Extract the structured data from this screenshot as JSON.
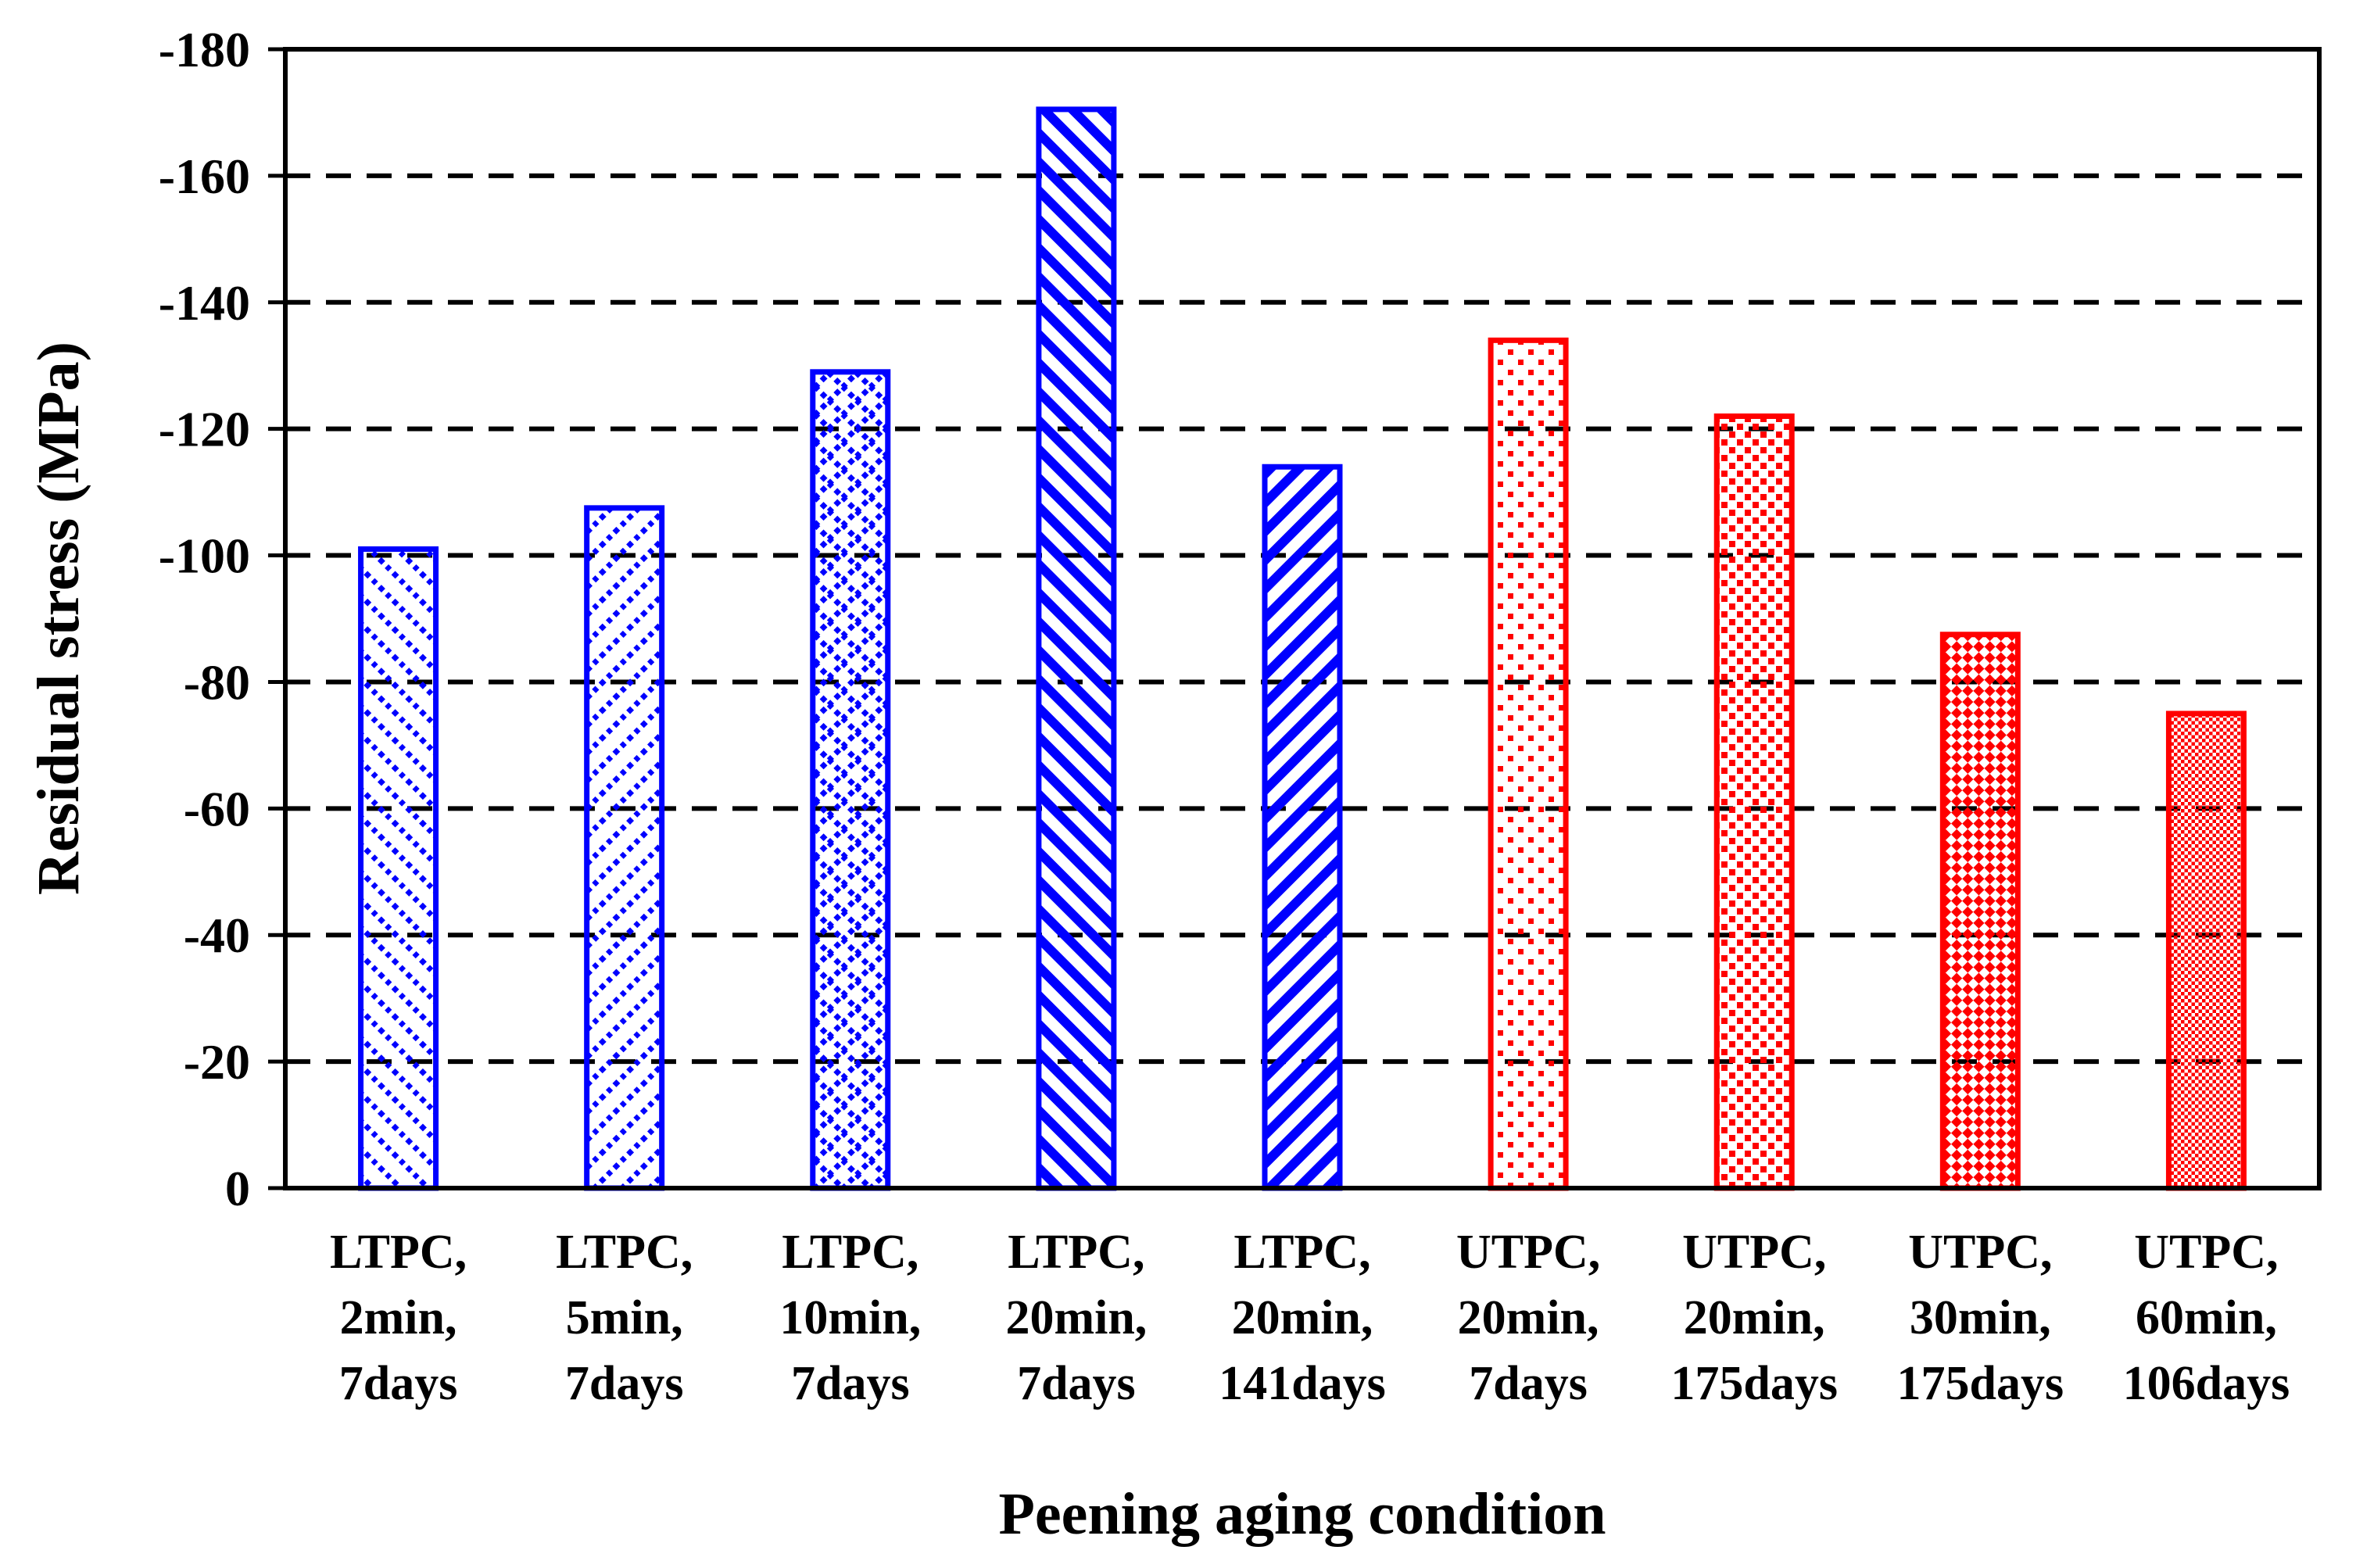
{
  "chart_data": {
    "type": "bar",
    "title": "",
    "xlabel": "Peening aging condition",
    "ylabel": "Residual stress (MPa)",
    "ylim": [
      0,
      -180
    ],
    "ytick_interval": 20,
    "yticks": [
      {
        "value": 0,
        "label": "0"
      },
      {
        "value": -20,
        "label": "-20"
      },
      {
        "value": -40,
        "label": "-40"
      },
      {
        "value": -60,
        "label": "-60"
      },
      {
        "value": -80,
        "label": "-80"
      },
      {
        "value": -100,
        "label": "-100"
      },
      {
        "value": -120,
        "label": "-120"
      },
      {
        "value": -140,
        "label": "-140"
      },
      {
        "value": -160,
        "label": "-160"
      },
      {
        "value": -180,
        "label": "-180"
      }
    ],
    "grid": {
      "style": "dashed",
      "color": "#000000",
      "lines_at": [
        -20,
        -40,
        -60,
        -80,
        -100,
        -120,
        -140,
        -160
      ]
    },
    "legend": "none",
    "categories": [
      "LTPC, 2min, 7days",
      "LTPC, 5min, 7days",
      "LTPC, 10min, 7days",
      "LTPC, 20min, 7days",
      "LTPC, 20min, 141days",
      "UTPC, 20min, 7days",
      "UTPC, 20min, 175days",
      "UTPC, 30min, 175days",
      "UTPC, 60min, 106days"
    ],
    "bars": [
      {
        "label_lines": [
          "LTPC,",
          "2min,",
          "7days"
        ],
        "value": -101,
        "color": "#0000ff",
        "hatch": "dotted-diag-down"
      },
      {
        "label_lines": [
          "LTPC,",
          "5min,",
          "7days"
        ],
        "value": -107.5,
        "color": "#0000ff",
        "hatch": "dotted-diag-up"
      },
      {
        "label_lines": [
          "LTPC,",
          "10min,",
          "7days"
        ],
        "value": -129,
        "color": "#0000ff",
        "hatch": "dotted-cross"
      },
      {
        "label_lines": [
          "LTPC,",
          "20min,",
          "7days"
        ],
        "value": -170.5,
        "color": "#0000ff",
        "hatch": "thick-diag-down"
      },
      {
        "label_lines": [
          "LTPC,",
          "20min,",
          "141days"
        ],
        "value": -114,
        "color": "#0000ff",
        "hatch": "thick-diag-up"
      },
      {
        "label_lines": [
          "UTPC,",
          "20min,",
          "7days"
        ],
        "value": -134,
        "color": "#ff0000",
        "hatch": "dots-sparse"
      },
      {
        "label_lines": [
          "UTPC,",
          "20min,",
          "175days"
        ],
        "value": -122,
        "color": "#ff0000",
        "hatch": "dots-dense"
      },
      {
        "label_lines": [
          "UTPC,",
          "30min,",
          "175days"
        ],
        "value": -87.5,
        "color": "#ff0000",
        "hatch": "diamond-check"
      },
      {
        "label_lines": [
          "UTPC,",
          "60min,",
          "106days"
        ],
        "value": -75,
        "color": "#ff0000",
        "hatch": "fine-check"
      }
    ]
  },
  "colors": {
    "ltpc_series": "#0000ff",
    "utpc_series": "#ff0000",
    "axis": "#000000",
    "grid": "#000000",
    "background": "#ffffff"
  }
}
